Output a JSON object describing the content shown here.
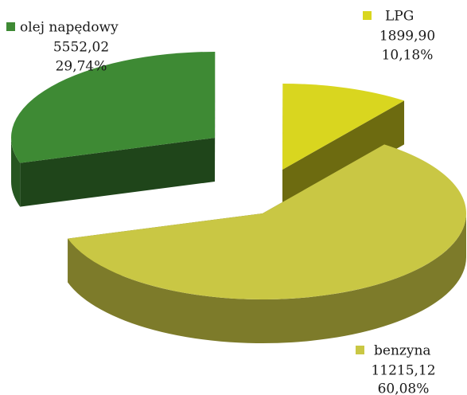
{
  "chart_data": {
    "type": "pie",
    "categories": [
      "olej napędowy",
      "LPG",
      "benzyna"
    ],
    "values": [
      5552.02,
      1899.9,
      11215.12
    ],
    "value_labels": [
      "5552,02",
      "1899,90",
      "11215,12"
    ],
    "percentages": [
      29.74,
      10.18,
      60.08
    ],
    "percent_labels": [
      "29,74%",
      "10,18%",
      "60,08%"
    ],
    "colors": [
      "#3e8a34",
      "#d9d61f",
      "#c9c744"
    ],
    "legend": "beside-slices"
  }
}
